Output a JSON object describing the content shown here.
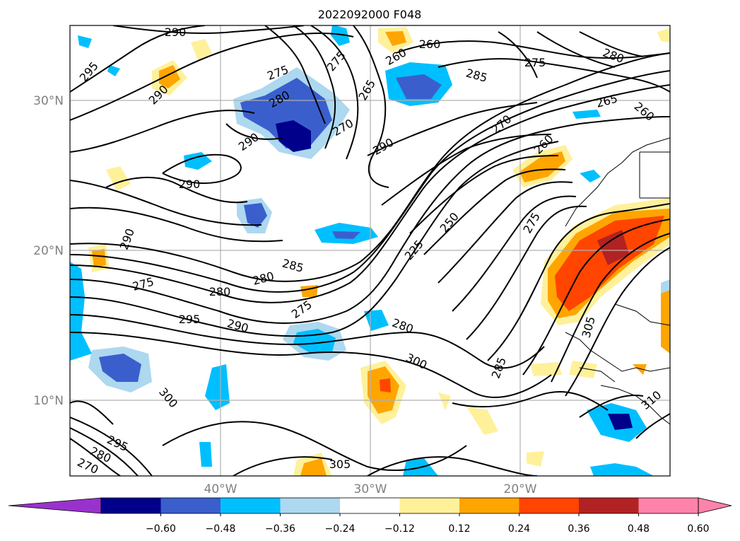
{
  "title": "2022092000 F048",
  "map": {
    "lat_ticks": [
      "30°N",
      "20°N",
      "10°N"
    ],
    "lon_ticks": [
      "40°W",
      "30°W",
      "20°W"
    ],
    "grid": true,
    "fields": {
      "contours": "black isolines with labels",
      "fill": "shaded anomalies"
    }
  },
  "contour_labels": [
    "290",
    "295",
    "290",
    "275",
    "275",
    "280",
    "260",
    "260",
    "285",
    "275",
    "280",
    "265",
    "260",
    "290",
    "270",
    "265",
    "290",
    "270",
    "260",
    "290",
    "250",
    "275",
    "290",
    "225",
    "285",
    "280",
    "275",
    "280",
    "295",
    "290",
    "275",
    "280",
    "300",
    "285",
    "305",
    "300",
    "295",
    "280",
    "270",
    "305",
    "310"
  ],
  "colorbar": {
    "tick_labels": [
      "−0.60",
      "−0.48",
      "−0.36",
      "−0.24",
      "−0.12",
      "0.12",
      "0.24",
      "0.36",
      "0.48",
      "0.60"
    ],
    "colors": [
      "#9932cc",
      "#00008b",
      "#3a5fcd",
      "#00bfff",
      "#add8f0",
      "#ffffff",
      "#fff09a",
      "#ffa500",
      "#ff4500",
      "#b22222",
      "#ff82ab",
      "#ff82ab"
    ]
  }
}
